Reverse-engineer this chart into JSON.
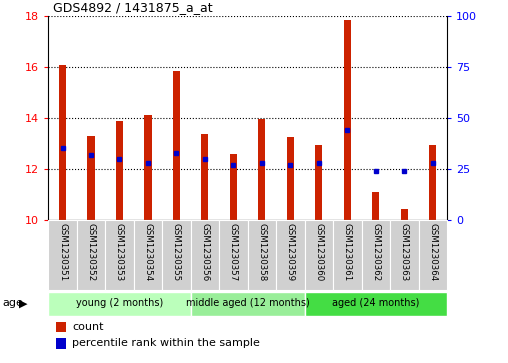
{
  "title": "GDS4892 / 1431875_a_at",
  "samples": [
    "GSM1230351",
    "GSM1230352",
    "GSM1230353",
    "GSM1230354",
    "GSM1230355",
    "GSM1230356",
    "GSM1230357",
    "GSM1230358",
    "GSM1230359",
    "GSM1230360",
    "GSM1230361",
    "GSM1230362",
    "GSM1230363",
    "GSM1230364"
  ],
  "count_values": [
    16.1,
    13.3,
    13.9,
    14.1,
    15.85,
    13.35,
    12.6,
    13.95,
    13.25,
    12.95,
    17.85,
    11.1,
    10.4,
    12.95
  ],
  "percentile_values": [
    35,
    32,
    30,
    28,
    33,
    30,
    27,
    28,
    27,
    28,
    44,
    24,
    24,
    28
  ],
  "count_base": 10,
  "ylim_left": [
    10,
    18
  ],
  "ylim_right": [
    0,
    100
  ],
  "yticks_left": [
    10,
    12,
    14,
    16,
    18
  ],
  "yticks_right": [
    0,
    25,
    50,
    75,
    100
  ],
  "bar_color": "#cc2200",
  "dot_color": "#0000cc",
  "groups": [
    {
      "label": "young (2 months)",
      "start": 0,
      "end": 5,
      "color": "#bbffbb"
    },
    {
      "label": "middle aged (12 months)",
      "start": 5,
      "end": 9,
      "color": "#99ee99"
    },
    {
      "label": "aged (24 months)",
      "start": 9,
      "end": 14,
      "color": "#44dd44"
    }
  ],
  "age_label": "age",
  "tick_bg_color": "#d0d0d0",
  "legend_count_label": "count",
  "legend_pct_label": "percentile rank within the sample",
  "grid_color": "#000000",
  "bar_width": 0.25
}
